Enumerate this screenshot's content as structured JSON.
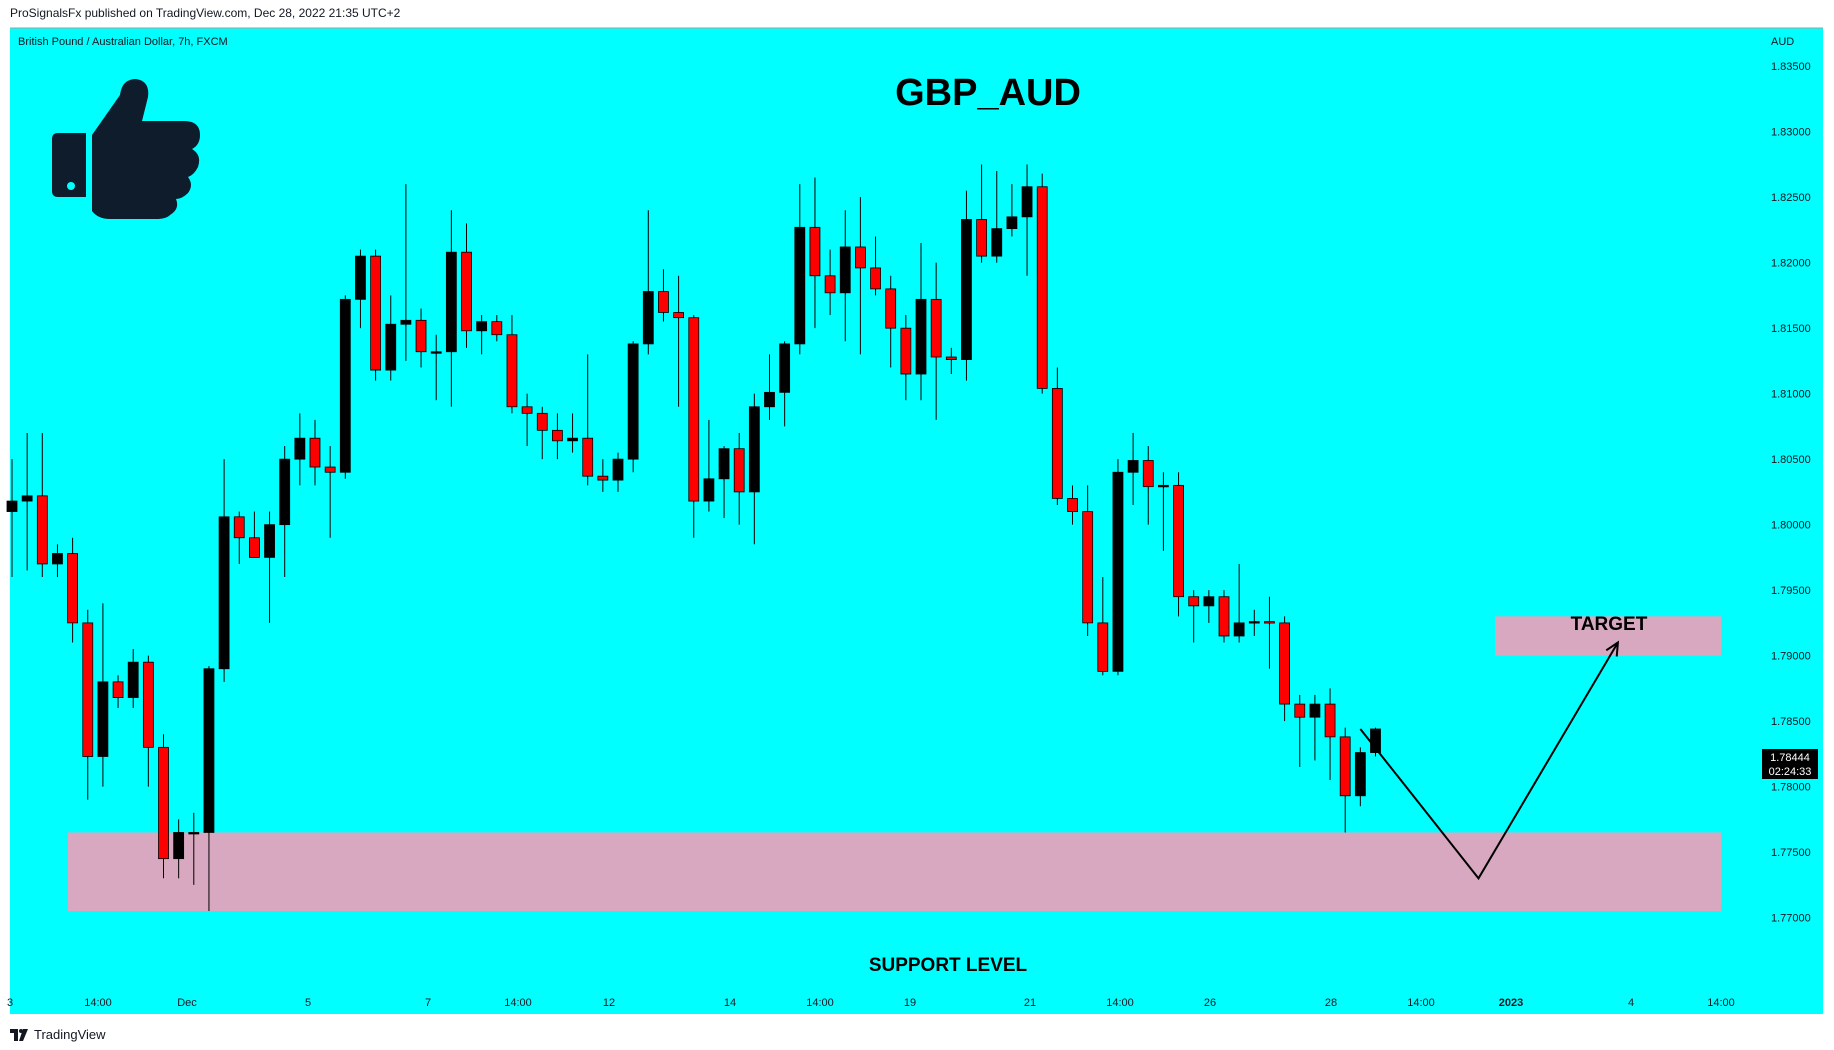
{
  "header": {
    "publisher_line": "ProSignalsFx published on TradingView.com, Dec 28, 2022 21:35 UTC+2"
  },
  "footer": {
    "brand": "TradingView",
    "brand_icon": "tradingview-logo-icon"
  },
  "chart_data": {
    "type": "candlestick",
    "symbol_line": "British Pound / Australian Dollar, 7h, FXCM",
    "title": "GBP_AUD",
    "currency": "AUD",
    "ylim": [
      1.766,
      1.837
    ],
    "y_ticks": [
      "1.83500",
      "1.83000",
      "1.82500",
      "1.82000",
      "1.81500",
      "1.81000",
      "1.80500",
      "1.80000",
      "1.79500",
      "1.79000",
      "1.78500",
      "1.78000",
      "1.77500",
      "1.77000"
    ],
    "x_tick_labels": [
      "3",
      "14:00",
      "Dec",
      "5",
      "7",
      "14:00",
      "12",
      "14",
      "14:00",
      "19",
      "21",
      "14:00",
      "26",
      "28",
      "14:00",
      "2023",
      "4",
      "14:00"
    ],
    "grid": false,
    "background_color": "#00ffff",
    "up_color": "#000000",
    "down_color": "#ff0000",
    "last_price": "1.78444",
    "countdown": "02:24:33",
    "candles": [
      {
        "o": 1.801,
        "h": 1.805,
        "l": 1.796,
        "c": 1.8018
      },
      {
        "o": 1.8018,
        "h": 1.807,
        "l": 1.7965,
        "c": 1.8022
      },
      {
        "o": 1.8022,
        "h": 1.807,
        "l": 1.796,
        "c": 1.797
      },
      {
        "o": 1.797,
        "h": 1.7985,
        "l": 1.796,
        "c": 1.7978
      },
      {
        "o": 1.7978,
        "h": 1.799,
        "l": 1.791,
        "c": 1.7925
      },
      {
        "o": 1.7925,
        "h": 1.7935,
        "l": 1.779,
        "c": 1.7823
      },
      {
        "o": 1.7823,
        "h": 1.794,
        "l": 1.78,
        "c": 1.788
      },
      {
        "o": 1.788,
        "h": 1.7885,
        "l": 1.786,
        "c": 1.7868
      },
      {
        "o": 1.7868,
        "h": 1.7905,
        "l": 1.786,
        "c": 1.7895
      },
      {
        "o": 1.7895,
        "h": 1.79,
        "l": 1.78,
        "c": 1.783
      },
      {
        "o": 1.783,
        "h": 1.784,
        "l": 1.773,
        "c": 1.7745
      },
      {
        "o": 1.7745,
        "h": 1.7775,
        "l": 1.773,
        "c": 1.7765
      },
      {
        "o": 1.7765,
        "h": 1.778,
        "l": 1.7725,
        "c": 1.7765
      },
      {
        "o": 1.7765,
        "h": 1.7892,
        "l": 1.7705,
        "c": 1.789
      },
      {
        "o": 1.789,
        "h": 1.805,
        "l": 1.788,
        "c": 1.8006
      },
      {
        "o": 1.8006,
        "h": 1.801,
        "l": 1.797,
        "c": 1.799
      },
      {
        "o": 1.799,
        "h": 1.801,
        "l": 1.7975,
        "c": 1.7975
      },
      {
        "o": 1.7975,
        "h": 1.801,
        "l": 1.7925,
        "c": 1.8
      },
      {
        "o": 1.8,
        "h": 1.806,
        "l": 1.796,
        "c": 1.805
      },
      {
        "o": 1.805,
        "h": 1.8085,
        "l": 1.803,
        "c": 1.8066
      },
      {
        "o": 1.8066,
        "h": 1.808,
        "l": 1.803,
        "c": 1.8044
      },
      {
        "o": 1.8044,
        "h": 1.806,
        "l": 1.799,
        "c": 1.804
      },
      {
        "o": 1.804,
        "h": 1.8175,
        "l": 1.8035,
        "c": 1.8172
      },
      {
        "o": 1.8172,
        "h": 1.821,
        "l": 1.815,
        "c": 1.8205
      },
      {
        "o": 1.8205,
        "h": 1.821,
        "l": 1.811,
        "c": 1.8118
      },
      {
        "o": 1.8118,
        "h": 1.8175,
        "l": 1.811,
        "c": 1.8153
      },
      {
        "o": 1.8153,
        "h": 1.826,
        "l": 1.8125,
        "c": 1.8156
      },
      {
        "o": 1.8156,
        "h": 1.8165,
        "l": 1.812,
        "c": 1.8132
      },
      {
        "o": 1.8132,
        "h": 1.8145,
        "l": 1.8095,
        "c": 1.8132
      },
      {
        "o": 1.8132,
        "h": 1.824,
        "l": 1.809,
        "c": 1.8208
      },
      {
        "o": 1.8208,
        "h": 1.823,
        "l": 1.8135,
        "c": 1.8148
      },
      {
        "o": 1.8148,
        "h": 1.816,
        "l": 1.813,
        "c": 1.8155
      },
      {
        "o": 1.8155,
        "h": 1.816,
        "l": 1.814,
        "c": 1.8145
      },
      {
        "o": 1.8145,
        "h": 1.816,
        "l": 1.8085,
        "c": 1.809
      },
      {
        "o": 1.809,
        "h": 1.81,
        "l": 1.806,
        "c": 1.8085
      },
      {
        "o": 1.8085,
        "h": 1.809,
        "l": 1.805,
        "c": 1.8072
      },
      {
        "o": 1.8072,
        "h": 1.8085,
        "l": 1.805,
        "c": 1.8064
      },
      {
        "o": 1.8064,
        "h": 1.8085,
        "l": 1.8055,
        "c": 1.8066
      },
      {
        "o": 1.8066,
        "h": 1.813,
        "l": 1.803,
        "c": 1.8037
      },
      {
        "o": 1.8037,
        "h": 1.805,
        "l": 1.8025,
        "c": 1.8034
      },
      {
        "o": 1.8034,
        "h": 1.8055,
        "l": 1.8025,
        "c": 1.805
      },
      {
        "o": 1.805,
        "h": 1.814,
        "l": 1.804,
        "c": 1.8138
      },
      {
        "o": 1.8138,
        "h": 1.824,
        "l": 1.813,
        "c": 1.8178
      },
      {
        "o": 1.8178,
        "h": 1.8195,
        "l": 1.8155,
        "c": 1.8162
      },
      {
        "o": 1.8162,
        "h": 1.819,
        "l": 1.809,
        "c": 1.8158
      },
      {
        "o": 1.8158,
        "h": 1.816,
        "l": 1.799,
        "c": 1.8018
      },
      {
        "o": 1.8018,
        "h": 1.808,
        "l": 1.801,
        "c": 1.8035
      },
      {
        "o": 1.8035,
        "h": 1.806,
        "l": 1.8005,
        "c": 1.8058
      },
      {
        "o": 1.8058,
        "h": 1.807,
        "l": 1.8,
        "c": 1.8025
      },
      {
        "o": 1.8025,
        "h": 1.81,
        "l": 1.7985,
        "c": 1.809
      },
      {
        "o": 1.809,
        "h": 1.813,
        "l": 1.808,
        "c": 1.8101
      },
      {
        "o": 1.8101,
        "h": 1.814,
        "l": 1.8075,
        "c": 1.8138
      },
      {
        "o": 1.8138,
        "h": 1.826,
        "l": 1.813,
        "c": 1.8227
      },
      {
        "o": 1.8227,
        "h": 1.8265,
        "l": 1.815,
        "c": 1.819
      },
      {
        "o": 1.819,
        "h": 1.821,
        "l": 1.816,
        "c": 1.8177
      },
      {
        "o": 1.8177,
        "h": 1.824,
        "l": 1.814,
        "c": 1.8212
      },
      {
        "o": 1.8212,
        "h": 1.825,
        "l": 1.813,
        "c": 1.8196
      },
      {
        "o": 1.8196,
        "h": 1.822,
        "l": 1.8175,
        "c": 1.818
      },
      {
        "o": 1.818,
        "h": 1.819,
        "l": 1.812,
        "c": 1.815
      },
      {
        "o": 1.815,
        "h": 1.816,
        "l": 1.8095,
        "c": 1.8115
      },
      {
        "o": 1.8115,
        "h": 1.8215,
        "l": 1.8095,
        "c": 1.8172
      },
      {
        "o": 1.8172,
        "h": 1.82,
        "l": 1.808,
        "c": 1.8128
      },
      {
        "o": 1.8128,
        "h": 1.8135,
        "l": 1.8115,
        "c": 1.8126
      },
      {
        "o": 1.8126,
        "h": 1.8255,
        "l": 1.811,
        "c": 1.8233
      },
      {
        "o": 1.8233,
        "h": 1.8275,
        "l": 1.82,
        "c": 1.8205
      },
      {
        "o": 1.8205,
        "h": 1.827,
        "l": 1.82,
        "c": 1.8226
      },
      {
        "o": 1.8226,
        "h": 1.826,
        "l": 1.822,
        "c": 1.8235
      },
      {
        "o": 1.8235,
        "h": 1.8275,
        "l": 1.819,
        "c": 1.8258
      },
      {
        "o": 1.8258,
        "h": 1.8268,
        "l": 1.81,
        "c": 1.8104
      },
      {
        "o": 1.8104,
        "h": 1.812,
        "l": 1.8015,
        "c": 1.802
      },
      {
        "o": 1.802,
        "h": 1.803,
        "l": 1.8,
        "c": 1.801
      },
      {
        "o": 1.801,
        "h": 1.803,
        "l": 1.7915,
        "c": 1.7925
      },
      {
        "o": 1.7925,
        "h": 1.796,
        "l": 1.7885,
        "c": 1.7888
      },
      {
        "o": 1.7888,
        "h": 1.805,
        "l": 1.7885,
        "c": 1.804
      },
      {
        "o": 1.804,
        "h": 1.807,
        "l": 1.8015,
        "c": 1.8049
      },
      {
        "o": 1.8049,
        "h": 1.806,
        "l": 1.8,
        "c": 1.8029
      },
      {
        "o": 1.8029,
        "h": 1.804,
        "l": 1.798,
        "c": 1.803
      },
      {
        "o": 1.803,
        "h": 1.804,
        "l": 1.793,
        "c": 1.7945
      },
      {
        "o": 1.7945,
        "h": 1.795,
        "l": 1.791,
        "c": 1.7938
      },
      {
        "o": 1.7938,
        "h": 1.795,
        "l": 1.7925,
        "c": 1.7945
      },
      {
        "o": 1.7945,
        "h": 1.795,
        "l": 1.791,
        "c": 1.7915
      },
      {
        "o": 1.7915,
        "h": 1.797,
        "l": 1.791,
        "c": 1.7925
      },
      {
        "o": 1.7925,
        "h": 1.7935,
        "l": 1.7915,
        "c": 1.7926
      },
      {
        "o": 1.7926,
        "h": 1.7945,
        "l": 1.789,
        "c": 1.7925
      },
      {
        "o": 1.7925,
        "h": 1.793,
        "l": 1.785,
        "c": 1.7863
      },
      {
        "o": 1.7863,
        "h": 1.787,
        "l": 1.7815,
        "c": 1.7853
      },
      {
        "o": 1.7853,
        "h": 1.787,
        "l": 1.782,
        "c": 1.7863
      },
      {
        "o": 1.7863,
        "h": 1.7875,
        "l": 1.7805,
        "c": 1.7838
      },
      {
        "o": 1.7838,
        "h": 1.7845,
        "l": 1.7765,
        "c": 1.7793
      },
      {
        "o": 1.7793,
        "h": 1.783,
        "l": 1.7785,
        "c": 1.7826
      },
      {
        "o": 1.7826,
        "h": 1.7845,
        "l": 1.7823,
        "c": 1.7844
      }
    ],
    "zones": [
      {
        "name": "support",
        "label": "SUPPORT LEVEL",
        "y0": 1.7705,
        "y1": 1.7765,
        "color": "#d8a8c0"
      },
      {
        "name": "target",
        "label": "TARGET",
        "y0": 1.79,
        "y1": 1.793,
        "color": "#d8a8c0"
      }
    ],
    "projection": [
      {
        "bar": 89,
        "y": 1.7844
      },
      {
        "bar": 96.8,
        "y": 1.773
      },
      {
        "bar": 106,
        "y": 1.791
      }
    ]
  }
}
